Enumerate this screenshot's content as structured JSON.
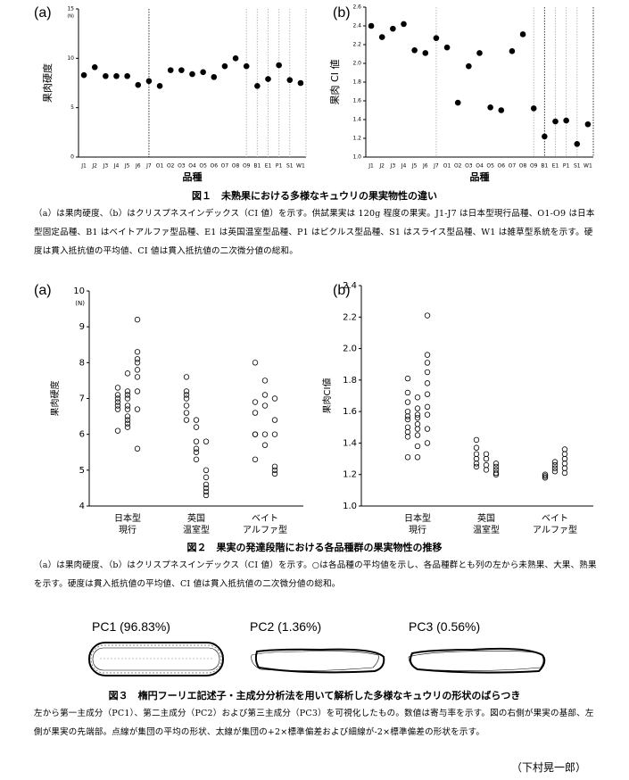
{
  "chart_data": [
    {
      "type": "scatter",
      "panel": "(a)",
      "y_label": "果肉硬度",
      "y_unit": "(N)",
      "x_label": "品種",
      "categories": [
        "J1",
        "J2",
        "J3",
        "J4",
        "J5",
        "J6",
        "J7",
        "O1",
        "O2",
        "O3",
        "O4",
        "O5",
        "O6",
        "O7",
        "O8",
        "O9",
        "B1",
        "E1",
        "P1",
        "S1",
        "W1"
      ],
      "values": [
        8.3,
        9.1,
        8.2,
        8.2,
        8.2,
        7.3,
        7.7,
        7.2,
        8.8,
        8.8,
        8.4,
        8.6,
        8.1,
        9.2,
        10.0,
        9.2,
        7.2,
        7.9,
        9.3,
        7.8,
        7.5
      ],
      "color": "#000000",
      "ylim": [
        0,
        15
      ],
      "yticks": [
        0,
        5,
        10,
        15
      ]
    },
    {
      "type": "scatter",
      "panel": "(b)",
      "y_label": "果肉 CI 値",
      "x_label": "品種",
      "categories": [
        "J1",
        "J2",
        "J3",
        "J4",
        "J5",
        "J6",
        "J7",
        "O1",
        "O2",
        "O3",
        "O4",
        "O5",
        "O6",
        "O7",
        "O8",
        "O9",
        "B1",
        "E1",
        "P1",
        "S1",
        "W1"
      ],
      "values": [
        2.4,
        2.28,
        2.37,
        2.42,
        2.14,
        2.11,
        2.27,
        2.17,
        1.58,
        1.97,
        2.11,
        1.53,
        1.5,
        2.13,
        2.31,
        1.52,
        1.22,
        1.38,
        1.39,
        1.14,
        1.35
      ],
      "color": "#000000",
      "ylim": [
        1.0,
        2.6
      ],
      "yticks": [
        {
          "value": 1,
          "label": "1.0"
        },
        1.2,
        1.4,
        1.6,
        1.8,
        {
          "value": 2,
          "label": "2.0"
        },
        2.2,
        2.4,
        2.6
      ]
    },
    {
      "type": "strip",
      "panel": "(a)",
      "y_label": "果肉硬度",
      "y_unit": "(N)",
      "groups": [
        {
          "label": [
            "日本型",
            "現行"
          ],
          "values": [
            [
              7.3,
              7.1,
              7.0,
              6.9,
              6.8,
              6.7,
              6.1
            ],
            [
              7.7,
              7.2,
              7.1,
              7.0,
              6.8,
              6.7,
              6.5,
              6.4,
              6.3,
              6.2
            ],
            [
              9.2,
              8.3,
              8.1,
              8.0,
              7.8,
              7.6,
              7.2,
              6.7,
              5.6
            ]
          ]
        },
        {
          "label": [
            "英国",
            "温室型"
          ],
          "values": [
            [
              7.6,
              7.2,
              7.1,
              7.0,
              6.8,
              6.6,
              6.4
            ],
            [
              6.4,
              6.2,
              5.8,
              5.6,
              5.5,
              5.3
            ],
            [
              5.8,
              5.0,
              4.8,
              4.6,
              4.5,
              4.4,
              4.3
            ]
          ]
        },
        {
          "label": [
            "ベイト",
            "アルファ型"
          ],
          "values": [
            [
              8.0,
              6.9,
              6.6,
              6.0,
              6.0,
              5.3
            ],
            [
              7.5,
              7.1,
              6.8,
              6.0,
              5.7
            ],
            [
              7.0,
              6.4,
              6.0,
              5.1,
              5.0,
              4.9
            ]
          ]
        }
      ],
      "color": "#000000",
      "ylim": [
        4,
        10
      ],
      "yticks": [
        4,
        5,
        6,
        7,
        8,
        9,
        10
      ]
    },
    {
      "type": "strip",
      "panel": "(b)",
      "y_label": "果肉CI値",
      "groups": [
        {
          "label": [
            "日本型",
            "現行"
          ],
          "values": [
            [
              1.81,
              1.72,
              1.66,
              1.6,
              1.57,
              1.55,
              1.5,
              1.47,
              1.44,
              1.31
            ],
            [
              1.69,
              1.62,
              1.58,
              1.56,
              1.52,
              1.49,
              1.45,
              1.38,
              1.31
            ],
            [
              2.21,
              1.96,
              1.91,
              1.85,
              1.78,
              1.71,
              1.63,
              1.58,
              1.49,
              1.4
            ]
          ]
        },
        {
          "label": [
            "英国",
            "温室型"
          ],
          "values": [
            [
              1.42,
              1.37,
              1.33,
              1.3,
              1.27,
              1.25
            ],
            [
              1.33,
              1.3,
              1.26,
              1.23
            ],
            [
              1.27,
              1.25,
              1.23,
              1.21,
              1.2
            ]
          ]
        },
        {
          "label": [
            "ベイト",
            "アルファ型"
          ],
          "values": [
            [
              1.2,
              1.19,
              1.18
            ],
            [
              1.28,
              1.26,
              1.24,
              1.22
            ],
            [
              1.36,
              1.33,
              1.3,
              1.27,
              1.24,
              1.21
            ]
          ]
        }
      ],
      "color": "#000000",
      "ylim": [
        1.0,
        2.4
      ],
      "yticks": [
        {
          "value": 1,
          "label": "1.0"
        },
        1.2,
        1.4,
        1.6,
        1.8,
        {
          "value": 2,
          "label": "2.0"
        },
        2.2,
        2.4
      ]
    }
  ],
  "figures": [
    {
      "title": "図１　未熟果における多様なキュウリの果実物性の違い",
      "caption": "（a）は果肉硬度、（b）はクリスプネスインデックス（CI 値）を示す。供試果実は 120g 程度の果実。J1-J7 は日本型現行品種、O1-O9 は日本型固定品種、B1 はベイトアルファ型品種、E1 は英国温室型品種、P1 はピクルス型品種、S1 はスライス型品種、W1 は雑草型系統を示す。硬度は貫入抵抗値の平均値、CI 値は貫入抵抗値の二次微分値の総和。"
    },
    {
      "title": "図２　果実の発達段階における各品種群の果実物性の推移",
      "caption": "（a）は果肉硬度、（b）はクリスプネスインデックス（CI 値）を示す。○は各品種の平均値を示し、各品種群とも列の左から未熟果、大果、熟果を示す。硬度は貫入抵抗値の平均値、CI 値は貫入抵抗値の二次微分値の総和。"
    },
    {
      "title": "図３　楕円フーリエ記述子・主成分分析法を用いて解析した多様なキュウリの形状のばらつき",
      "caption": "左から第一主成分（PC1）、第二主成分（PC2）および第三主成分（PC3）を可視化したもの。数値は寄与率を示す。図の右側が果実の基部、左側が果実の先端部。点線が集団の平均の形状、太線が集団の+2×標準偏差および細線が-2×標準偏差の形状を示す。"
    }
  ],
  "shapes": [
    "PC1 (96.83%)",
    "PC2 (1.36%)",
    "PC3 (0.56%)"
  ],
  "author": "（下村晃一郎）"
}
